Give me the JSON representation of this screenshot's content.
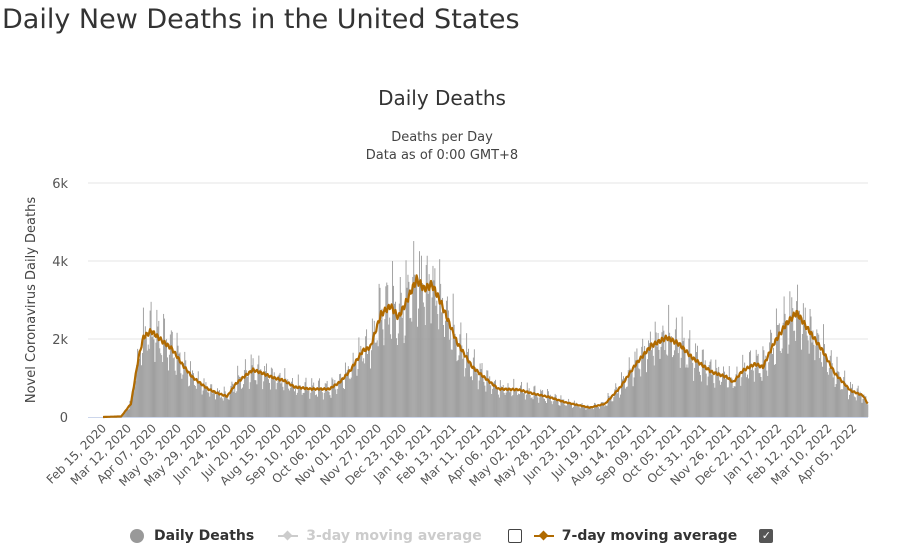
{
  "page_title": "Daily New Deaths in the United States",
  "chart_data": {
    "type": "bar",
    "title": "Daily Deaths",
    "subtitle": [
      "Deaths per Day",
      "Data as of 0:00 GMT+8"
    ],
    "ylabel": "Novel Coronavirus Daily Deaths",
    "xlabel": "",
    "ylim": [
      0,
      6000
    ],
    "yticks": [
      {
        "v": 0,
        "label": "0"
      },
      {
        "v": 2000,
        "label": "2k"
      },
      {
        "v": 4000,
        "label": "4k"
      },
      {
        "v": 6000,
        "label": "6k"
      }
    ],
    "grid": true,
    "start_date": "Feb 15, 2020",
    "days": 796,
    "xtick_interval_days": 26,
    "xtick_labels": [
      "Feb 15, 2020",
      "Mar 12, 2020",
      "Apr 07, 2020",
      "May 03, 2020",
      "May 29, 2020",
      "Jun 24, 2020",
      "Jul 20, 2020",
      "Aug 15, 2020",
      "Sep 10, 2020",
      "Oct 06, 2020",
      "Nov 01, 2020",
      "Nov 27, 2020",
      "Dec 23, 2020",
      "Jan 18, 2021",
      "Feb 13, 2021",
      "Mar 11, 2021",
      "Apr 06, 2021",
      "May 02, 2021",
      "May 28, 2021",
      "Jun 23, 2021",
      "Jul 19, 2021",
      "Aug 14, 2021",
      "Sep 09, 2021",
      "Oct 05, 2021",
      "Oct 31, 2021",
      "Nov 26, 2021",
      "Dec 22, 2021",
      "Jan 17, 2022",
      "Feb 12, 2022",
      "Mar 10, 2022",
      "Apr 05, 2022"
    ],
    "moving_avg_7day_points": [
      [
        0,
        0
      ],
      [
        19,
        15
      ],
      [
        29,
        340
      ],
      [
        37,
        1530
      ],
      [
        42,
        2040
      ],
      [
        50,
        2210
      ],
      [
        61,
        1960
      ],
      [
        72,
        1740
      ],
      [
        82,
        1360
      ],
      [
        93,
        1020
      ],
      [
        109,
        720
      ],
      [
        119,
        610
      ],
      [
        129,
        530
      ],
      [
        138,
        850
      ],
      [
        146,
        1020
      ],
      [
        156,
        1210
      ],
      [
        167,
        1110
      ],
      [
        178,
        1000
      ],
      [
        188,
        940
      ],
      [
        199,
        770
      ],
      [
        215,
        720
      ],
      [
        235,
        715
      ],
      [
        246,
        890
      ],
      [
        257,
        1190
      ],
      [
        270,
        1700
      ],
      [
        278,
        1790
      ],
      [
        289,
        2640
      ],
      [
        299,
        2850
      ],
      [
        307,
        2550
      ],
      [
        315,
        2940
      ],
      [
        326,
        3530
      ],
      [
        334,
        3280
      ],
      [
        342,
        3400
      ],
      [
        352,
        2890
      ],
      [
        368,
        1910
      ],
      [
        384,
        1280
      ],
      [
        400,
        940
      ],
      [
        411,
        720
      ],
      [
        432,
        700
      ],
      [
        447,
        600
      ],
      [
        464,
        510
      ],
      [
        480,
        380
      ],
      [
        506,
        240
      ],
      [
        522,
        340
      ],
      [
        538,
        770
      ],
      [
        554,
        1360
      ],
      [
        570,
        1830
      ],
      [
        586,
        2040
      ],
      [
        599,
        1870
      ],
      [
        612,
        1530
      ],
      [
        633,
        1150
      ],
      [
        649,
        1020
      ],
      [
        655,
        890
      ],
      [
        665,
        1190
      ],
      [
        678,
        1360
      ],
      [
        686,
        1280
      ],
      [
        697,
        1870
      ],
      [
        710,
        2380
      ],
      [
        721,
        2680
      ],
      [
        734,
        2210
      ],
      [
        748,
        1700
      ],
      [
        761,
        1110
      ],
      [
        777,
        680
      ],
      [
        790,
        550
      ],
      [
        795,
        340
      ]
    ],
    "daily_weekday_factors": [
      1.25,
      1.2,
      1.1,
      1.0,
      0.9,
      0.75,
      0.8
    ],
    "series": [
      {
        "name": "Daily Deaths",
        "color": "#999999",
        "visible": true
      },
      {
        "name": "3-day moving average",
        "color": "#cccccc",
        "visible": false
      },
      {
        "name": "7-day moving average",
        "color": "#b06a00",
        "visible": true
      }
    ],
    "legend_position": "bottom"
  },
  "legend": {
    "daily": "Daily Deaths",
    "ma3": "3-day moving average",
    "ma7": "7-day moving average",
    "check": "✓"
  }
}
